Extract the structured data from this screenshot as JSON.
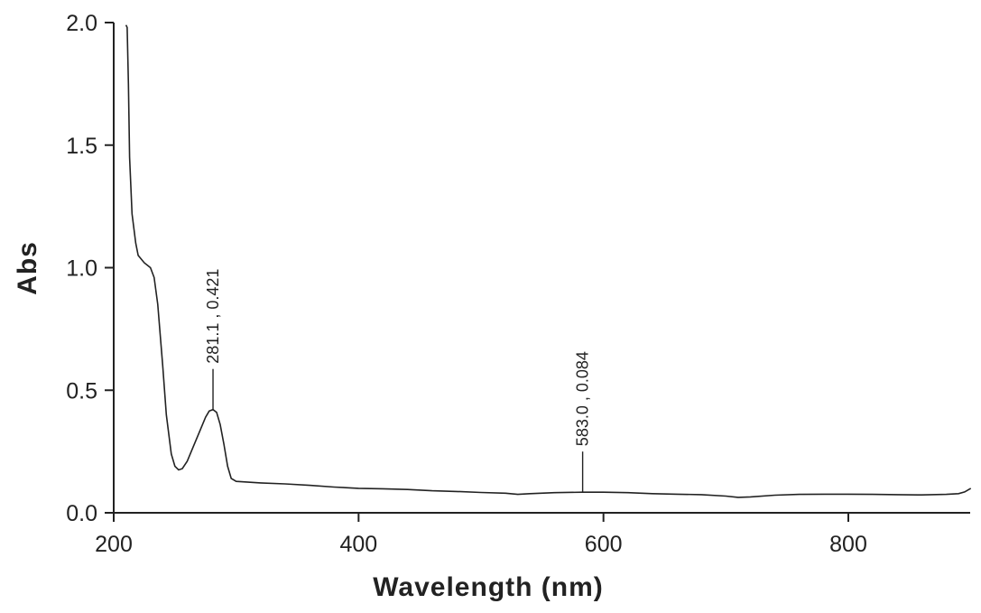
{
  "chart_data": {
    "type": "line",
    "title": "",
    "xlabel": "Wavelength (nm)",
    "ylabel": "Abs",
    "xlim": [
      200,
      900
    ],
    "ylim": [
      0,
      2.0
    ],
    "xticks": [
      200,
      400,
      600,
      800
    ],
    "xtick_labels": [
      "200",
      "400",
      "600",
      "800"
    ],
    "yticks": [
      0,
      0.5,
      1.0,
      1.5,
      2.0
    ],
    "ytick_labels": [
      "0.0",
      "0.5",
      "1.0",
      "1.5",
      "2.0"
    ],
    "grid": false,
    "legend": "none",
    "line_color": "#222222",
    "series": [
      {
        "x": [
          210,
          211,
          212,
          213,
          215,
          218,
          220,
          225,
          230,
          233,
          236,
          240,
          243,
          247,
          250,
          253,
          256,
          260,
          265,
          270,
          275,
          278,
          281.1,
          284,
          287,
          290,
          293,
          296,
          300,
          310,
          320,
          340,
          360,
          380,
          400,
          420,
          440,
          460,
          480,
          500,
          520,
          530,
          540,
          560,
          583,
          600,
          620,
          640,
          660,
          680,
          700,
          710,
          720,
          740,
          760,
          780,
          800,
          820,
          840,
          860,
          880,
          890,
          895,
          900
        ],
        "y": [
          1.99,
          1.98,
          1.75,
          1.45,
          1.22,
          1.1,
          1.05,
          1.02,
          1.0,
          0.96,
          0.85,
          0.6,
          0.4,
          0.24,
          0.19,
          0.175,
          0.18,
          0.21,
          0.27,
          0.33,
          0.39,
          0.415,
          0.421,
          0.41,
          0.36,
          0.28,
          0.19,
          0.14,
          0.128,
          0.125,
          0.122,
          0.118,
          0.112,
          0.105,
          0.1,
          0.098,
          0.095,
          0.09,
          0.087,
          0.083,
          0.08,
          0.075,
          0.078,
          0.082,
          0.084,
          0.084,
          0.082,
          0.078,
          0.076,
          0.074,
          0.068,
          0.063,
          0.065,
          0.072,
          0.075,
          0.076,
          0.076,
          0.075,
          0.074,
          0.073,
          0.075,
          0.078,
          0.085,
          0.1
        ]
      }
    ],
    "annotations": [
      {
        "x": 281.1,
        "y": 0.421,
        "text": "281.1 , 0.421"
      },
      {
        "x": 583.0,
        "y": 0.084,
        "text": "583.0 , 0.084"
      }
    ]
  }
}
